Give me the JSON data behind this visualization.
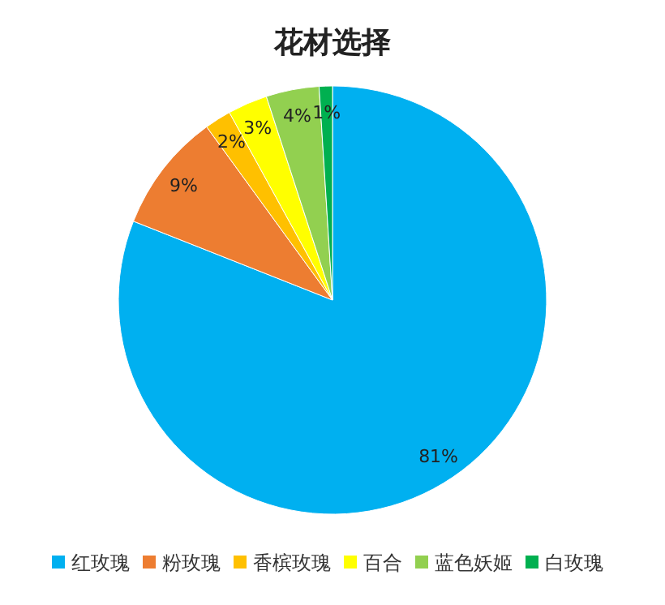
{
  "chart_data": {
    "type": "pie",
    "title": "花材选择",
    "categories": [
      "红玫瑰",
      "粉玫瑰",
      "香槟玫瑰",
      "百合",
      "蓝色妖姬",
      "白玫瑰"
    ],
    "values": [
      81,
      9,
      2,
      3,
      4,
      1
    ],
    "value_labels": [
      "81%",
      "9%",
      "2%",
      "3%",
      "4%",
      "1%"
    ],
    "colors": [
      "#00b0f0",
      "#ed7d31",
      "#ffc000",
      "#ffff00",
      "#92d050",
      "#00b050"
    ],
    "legend": "bottom"
  }
}
